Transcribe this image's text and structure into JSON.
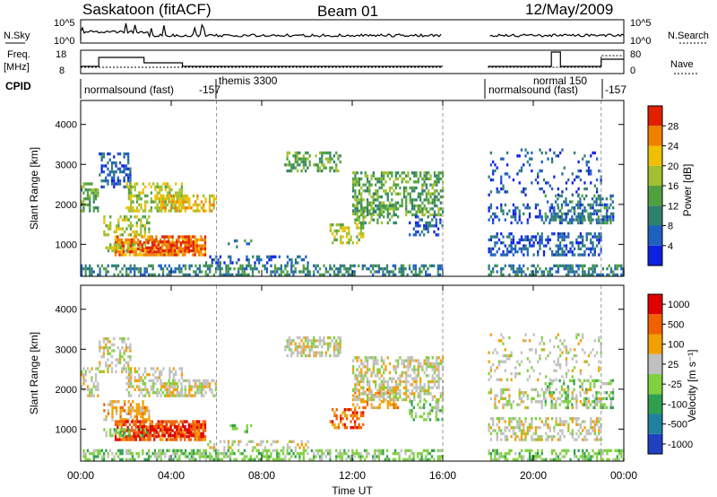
{
  "header": {
    "station": "Saskatoon (fitACF)",
    "beam": "Beam 01",
    "date": "12/May/2009"
  },
  "top_panels": {
    "nsky_label": "N.Sky",
    "nsky_ticks": [
      "10^5",
      "10^0"
    ],
    "nsearch_label": "N.Search",
    "freq_label": "Freq.",
    "freq_unit": "[MHz]",
    "freq_ticks": [
      "18",
      "8"
    ],
    "nave_label": "Nave",
    "nave_ticks": [
      "80",
      "0"
    ],
    "cpid_label": "CPID",
    "cpid_segments": [
      {
        "text": "normalsound (fast)",
        "row": 2
      },
      {
        "text": "-157",
        "row": 2
      },
      {
        "text": "themis 3300",
        "row": 1
      },
      {
        "text": "normal 150",
        "row": 1
      },
      {
        "text": "normalsound (fast)",
        "row": 2
      },
      {
        "text": "-157",
        "row": 2
      }
    ]
  },
  "chart_data": [
    {
      "type": "heatmap",
      "name": "power",
      "xlabel": "Time UT",
      "ylabel": "Slant Range [km]",
      "x_ticks": [
        "00:00",
        "04:00",
        "08:00",
        "12:00",
        "16:00",
        "20:00",
        "00:00"
      ],
      "y_ticks": [
        1000,
        2000,
        3000,
        4000
      ],
      "xlim": [
        0,
        24
      ],
      "ylim": [
        200,
        4600
      ],
      "colorbar": {
        "label": "Power [dB]",
        "ticks": [
          4,
          8,
          12,
          16,
          20,
          24,
          28
        ],
        "colors": [
          "#1020e0",
          "#2060c0",
          "#308070",
          "#50a040",
          "#a0c030",
          "#f0c000",
          "#f08000",
          "#e02000"
        ]
      },
      "data_gaps_ut": [
        [
          16.0,
          18.0
        ]
      ],
      "markers_ut": [
        6.0,
        16.0,
        23.0
      ]
    },
    {
      "type": "heatmap",
      "name": "velocity",
      "xlabel": "Time UT",
      "ylabel": "Slant Range [km]",
      "x_ticks": [
        "00:00",
        "04:00",
        "08:00",
        "12:00",
        "16:00",
        "20:00",
        "00:00"
      ],
      "y_ticks": [
        1000,
        2000,
        3000,
        4000
      ],
      "xlim": [
        0,
        24
      ],
      "ylim": [
        200,
        4600
      ],
      "colorbar": {
        "label": "Velocity [m s⁻¹]",
        "ticks": [
          "1000",
          "500",
          "100",
          "25",
          "-25",
          "-100",
          "-500",
          "-1000"
        ],
        "colors": [
          "#2040c0",
          "#2080a0",
          "#30a050",
          "#80d040",
          "#c0c0c0",
          "#f0a000",
          "#f06000",
          "#e00000"
        ]
      },
      "markers_ut": [
        6.0,
        16.0,
        23.0
      ]
    }
  ],
  "colors": {
    "power_strong": "#e02000",
    "power_weak": "#1020e0",
    "ground_scatter": "#a0a0a0"
  }
}
